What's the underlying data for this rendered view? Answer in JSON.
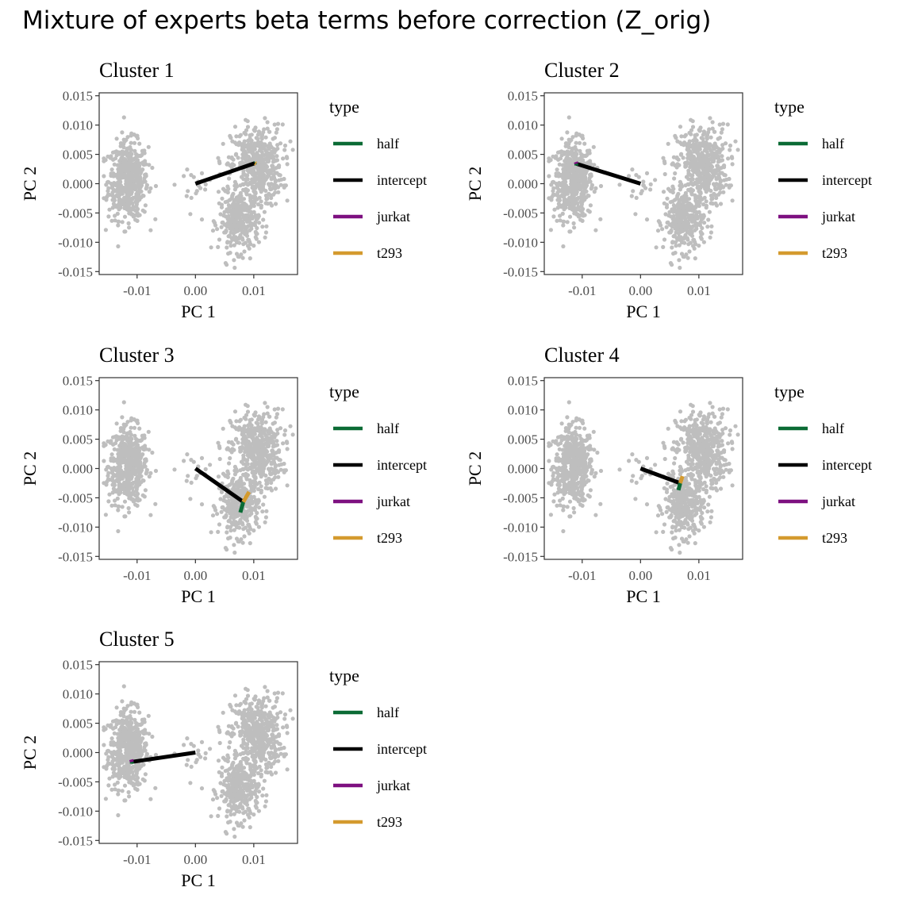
{
  "title": "Mixture of experts beta terms before correction (Z_orig)",
  "chart_data": {
    "type": "scatter",
    "title": "Mixture of experts beta terms before correction (Z_orig)",
    "xlabel": "PC 1",
    "ylabel": "PC 2",
    "xlim": [
      -0.0165,
      0.0175
    ],
    "ylim": [
      -0.0155,
      0.0155
    ],
    "x_ticks": [
      -0.01,
      0.0,
      0.01
    ],
    "x_tick_labels": [
      "-0.01",
      "0.00",
      "0.01"
    ],
    "y_ticks": [
      0.015,
      0.01,
      0.005,
      0.0,
      -0.005,
      -0.01,
      -0.015
    ],
    "y_tick_labels": [
      "0.015",
      "0.010",
      "0.005",
      "0.000",
      "-0.005",
      "-0.010",
      "-0.015"
    ],
    "grid": false,
    "legend": {
      "title": "type",
      "placement": "right",
      "entries": [
        {
          "label": "half",
          "color": "#0b6b35"
        },
        {
          "label": "intercept",
          "color": "#000000"
        },
        {
          "label": "jurkat",
          "color": "#7d1080"
        },
        {
          "label": "t293",
          "color": "#d49a2e"
        }
      ]
    },
    "background_points": {
      "color": "#bebebe",
      "groups": [
        {
          "name": "left",
          "cx": -0.0115,
          "cy": 0.0005,
          "sx": 0.0017,
          "sy": 0.0033,
          "n": 520
        },
        {
          "name": "upper-right",
          "cx": 0.0105,
          "cy": 0.003,
          "sx": 0.0022,
          "sy": 0.0035,
          "n": 480
        },
        {
          "name": "lower-right",
          "cx": 0.0075,
          "cy": -0.0065,
          "sx": 0.0017,
          "sy": 0.0025,
          "n": 300
        },
        {
          "name": "bridge",
          "cx": 0.0,
          "cy": -0.0005,
          "sx": 0.0025,
          "sy": 0.0022,
          "n": 22
        }
      ]
    },
    "panels": [
      {
        "title": "Cluster 1",
        "segments": [
          {
            "type": "intercept",
            "x0": 0.0,
            "y0": 0.0,
            "x1": 0.0102,
            "y1": 0.0035
          },
          {
            "type": "half",
            "x0": 0.0102,
            "y0": 0.0035,
            "x1": 0.0103,
            "y1": 0.0036
          },
          {
            "type": "jurkat",
            "x0": 0.0102,
            "y0": 0.0035,
            "x1": 0.0102,
            "y1": 0.0035
          },
          {
            "type": "t293",
            "x0": 0.0102,
            "y0": 0.0035,
            "x1": 0.0104,
            "y1": 0.0034
          }
        ]
      },
      {
        "title": "Cluster 2",
        "segments": [
          {
            "type": "intercept",
            "x0": 0.0,
            "y0": 0.0,
            "x1": -0.011,
            "y1": 0.0034
          },
          {
            "type": "half",
            "x0": -0.011,
            "y0": 0.0034,
            "x1": -0.011,
            "y1": 0.0031
          },
          {
            "type": "jurkat",
            "x0": -0.011,
            "y0": 0.0034,
            "x1": -0.0111,
            "y1": 0.0037
          },
          {
            "type": "t293",
            "x0": -0.011,
            "y0": 0.0034,
            "x1": -0.011,
            "y1": 0.0034
          }
        ]
      },
      {
        "title": "Cluster 3",
        "segments": [
          {
            "type": "intercept",
            "x0": 0.0,
            "y0": 0.0,
            "x1": 0.0082,
            "y1": -0.0057
          },
          {
            "type": "half",
            "x0": 0.0082,
            "y0": -0.0057,
            "x1": 0.0077,
            "y1": -0.0075
          },
          {
            "type": "jurkat",
            "x0": 0.0082,
            "y0": -0.0057,
            "x1": 0.0082,
            "y1": -0.0057
          },
          {
            "type": "t293",
            "x0": 0.0082,
            "y0": -0.0057,
            "x1": 0.0092,
            "y1": -0.004
          }
        ]
      },
      {
        "title": "Cluster 4",
        "segments": [
          {
            "type": "intercept",
            "x0": 0.0,
            "y0": 0.0,
            "x1": 0.0068,
            "y1": -0.0025
          },
          {
            "type": "half",
            "x0": 0.0068,
            "y0": -0.0025,
            "x1": 0.0065,
            "y1": -0.0037
          },
          {
            "type": "jurkat",
            "x0": 0.0068,
            "y0": -0.0025,
            "x1": 0.0068,
            "y1": -0.0025
          },
          {
            "type": "t293",
            "x0": 0.0068,
            "y0": -0.0025,
            "x1": 0.0072,
            "y1": -0.0013
          }
        ]
      },
      {
        "title": "Cluster 5",
        "segments": [
          {
            "type": "intercept",
            "x0": 0.0,
            "y0": 0.0,
            "x1": -0.0109,
            "y1": -0.0016
          },
          {
            "type": "half",
            "x0": -0.0109,
            "y0": -0.0016,
            "x1": -0.0109,
            "y1": -0.0019
          },
          {
            "type": "jurkat",
            "x0": -0.0109,
            "y0": -0.0016,
            "x1": -0.011,
            "y1": -0.0012
          },
          {
            "type": "t293",
            "x0": -0.0109,
            "y0": -0.0016,
            "x1": -0.0109,
            "y1": -0.0016
          }
        ]
      }
    ]
  }
}
